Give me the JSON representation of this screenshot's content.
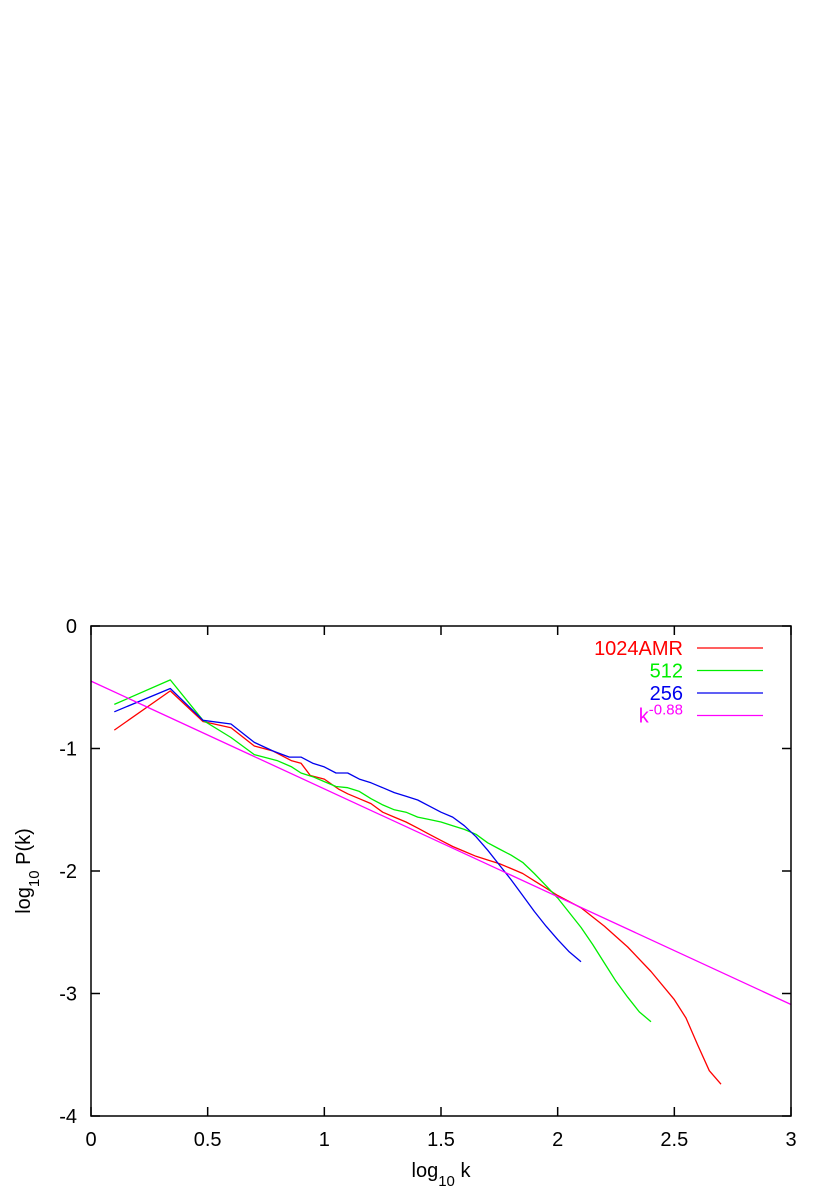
{
  "chart_data": {
    "type": "line",
    "title": "",
    "xlabel": "log10 k",
    "ylabel": "log10 P(k)",
    "xlim": [
      0,
      3
    ],
    "ylim": [
      -4,
      0
    ],
    "x_ticks": [
      0,
      0.5,
      1,
      1.5,
      2,
      2.5,
      3
    ],
    "x_tick_labels": [
      "0",
      "0.5",
      "1",
      "1.5",
      "2",
      "2.5",
      "3"
    ],
    "y_ticks": [
      0,
      -1,
      -2,
      -3,
      -4
    ],
    "y_tick_labels": [
      "0",
      "-1",
      "-2",
      "-3",
      "-4"
    ],
    "grid": false,
    "legend_position": "top-right",
    "series": [
      {
        "name": "1024AMR",
        "color": "#ff0000",
        "points": [
          [
            0.1,
            -0.85
          ],
          [
            0.34,
            -0.53
          ],
          [
            0.48,
            -0.78
          ],
          [
            0.6,
            -0.83
          ],
          [
            0.7,
            -0.98
          ],
          [
            0.78,
            -1.02
          ],
          [
            0.86,
            -1.1
          ],
          [
            0.9,
            -1.12
          ],
          [
            0.94,
            -1.22
          ],
          [
            1.0,
            -1.25
          ],
          [
            1.06,
            -1.33
          ],
          [
            1.1,
            -1.37
          ],
          [
            1.15,
            -1.41
          ],
          [
            1.2,
            -1.45
          ],
          [
            1.25,
            -1.52
          ],
          [
            1.3,
            -1.56
          ],
          [
            1.35,
            -1.6
          ],
          [
            1.4,
            -1.65
          ],
          [
            1.45,
            -1.7
          ],
          [
            1.5,
            -1.75
          ],
          [
            1.55,
            -1.8
          ],
          [
            1.6,
            -1.84
          ],
          [
            1.65,
            -1.88
          ],
          [
            1.7,
            -1.91
          ],
          [
            1.75,
            -1.94
          ],
          [
            1.8,
            -1.98
          ],
          [
            1.85,
            -2.02
          ],
          [
            1.9,
            -2.08
          ],
          [
            1.95,
            -2.14
          ],
          [
            2.0,
            -2.2
          ],
          [
            2.1,
            -2.3
          ],
          [
            2.2,
            -2.45
          ],
          [
            2.3,
            -2.62
          ],
          [
            2.4,
            -2.82
          ],
          [
            2.5,
            -3.05
          ],
          [
            2.55,
            -3.2
          ],
          [
            2.6,
            -3.42
          ],
          [
            2.65,
            -3.63
          ],
          [
            2.7,
            -3.74
          ]
        ]
      },
      {
        "name": "512",
        "color": "#00ee00",
        "points": [
          [
            0.1,
            -0.64
          ],
          [
            0.34,
            -0.44
          ],
          [
            0.48,
            -0.77
          ],
          [
            0.6,
            -0.91
          ],
          [
            0.7,
            -1.05
          ],
          [
            0.8,
            -1.1
          ],
          [
            0.86,
            -1.15
          ],
          [
            0.9,
            -1.2
          ],
          [
            0.95,
            -1.23
          ],
          [
            1.0,
            -1.27
          ],
          [
            1.05,
            -1.31
          ],
          [
            1.1,
            -1.32
          ],
          [
            1.15,
            -1.35
          ],
          [
            1.2,
            -1.41
          ],
          [
            1.25,
            -1.46
          ],
          [
            1.3,
            -1.5
          ],
          [
            1.35,
            -1.52
          ],
          [
            1.4,
            -1.56
          ],
          [
            1.45,
            -1.58
          ],
          [
            1.5,
            -1.6
          ],
          [
            1.55,
            -1.63
          ],
          [
            1.6,
            -1.66
          ],
          [
            1.65,
            -1.7
          ],
          [
            1.7,
            -1.77
          ],
          [
            1.75,
            -1.82
          ],
          [
            1.8,
            -1.87
          ],
          [
            1.85,
            -1.93
          ],
          [
            1.9,
            -2.02
          ],
          [
            1.95,
            -2.12
          ],
          [
            2.0,
            -2.22
          ],
          [
            2.05,
            -2.34
          ],
          [
            2.1,
            -2.46
          ],
          [
            2.15,
            -2.6
          ],
          [
            2.2,
            -2.75
          ],
          [
            2.25,
            -2.9
          ],
          [
            2.3,
            -3.03
          ],
          [
            2.35,
            -3.15
          ],
          [
            2.4,
            -3.23
          ]
        ]
      },
      {
        "name": "256",
        "color": "#0000ee",
        "points": [
          [
            0.1,
            -0.7
          ],
          [
            0.34,
            -0.51
          ],
          [
            0.48,
            -0.77
          ],
          [
            0.6,
            -0.8
          ],
          [
            0.7,
            -0.95
          ],
          [
            0.78,
            -1.02
          ],
          [
            0.85,
            -1.07
          ],
          [
            0.9,
            -1.07
          ],
          [
            0.95,
            -1.12
          ],
          [
            1.0,
            -1.15
          ],
          [
            1.05,
            -1.2
          ],
          [
            1.1,
            -1.2
          ],
          [
            1.15,
            -1.25
          ],
          [
            1.2,
            -1.28
          ],
          [
            1.25,
            -1.32
          ],
          [
            1.3,
            -1.36
          ],
          [
            1.35,
            -1.39
          ],
          [
            1.4,
            -1.42
          ],
          [
            1.45,
            -1.47
          ],
          [
            1.5,
            -1.52
          ],
          [
            1.55,
            -1.56
          ],
          [
            1.6,
            -1.63
          ],
          [
            1.65,
            -1.72
          ],
          [
            1.7,
            -1.83
          ],
          [
            1.75,
            -1.95
          ],
          [
            1.8,
            -2.07
          ],
          [
            1.85,
            -2.2
          ],
          [
            1.9,
            -2.33
          ],
          [
            1.95,
            -2.45
          ],
          [
            2.0,
            -2.56
          ],
          [
            2.05,
            -2.66
          ],
          [
            2.1,
            -2.74
          ]
        ]
      },
      {
        "name": "k",
        "name_superscript": "-0.88",
        "color": "#ff00ff",
        "points": [
          [
            0,
            -0.45
          ],
          [
            3,
            -3.09
          ]
        ]
      }
    ]
  }
}
